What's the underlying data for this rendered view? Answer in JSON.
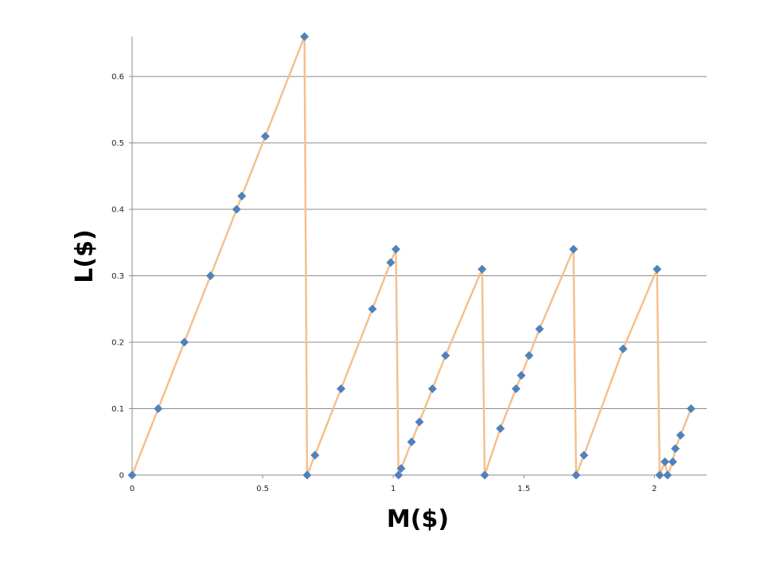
{
  "chart_data": {
    "type": "line",
    "title": "",
    "xlabel": "M($)",
    "ylabel": "L($)",
    "xlim": [
      0,
      2.2
    ],
    "ylim": [
      0,
      0.66
    ],
    "xticks": [
      0,
      0.5,
      1,
      1.5,
      2
    ],
    "xtick_labels": [
      "0",
      "0.5",
      "1",
      "1.5",
      "2"
    ],
    "yticks": [
      0,
      0.1,
      0.2,
      0.3,
      0.4,
      0.5,
      0.6
    ],
    "ytick_labels": [
      "0",
      "0.1",
      "0.2",
      "0.3",
      "0.4",
      "0.5",
      "0.6"
    ],
    "grid": "horizontal",
    "legend": "none",
    "line_color": "#F5C08D",
    "marker_color": "#4F81BD",
    "marker": "diamond",
    "series": [
      {
        "x": [
          0,
          0.1,
          0.2,
          0.3,
          0.4,
          0.42,
          0.51,
          0.66,
          0.67,
          0.7,
          0.8,
          0.92,
          0.99,
          1.01,
          1.02,
          1.03,
          1.07,
          1.1,
          1.15,
          1.2,
          1.34,
          1.35,
          1.41,
          1.47,
          1.49,
          1.52,
          1.56,
          1.69,
          1.7,
          1.73,
          1.88,
          2.01,
          2.02,
          2.04,
          2.05,
          2.07,
          2.08,
          2.1,
          2.14
        ],
        "y": [
          0,
          0.1,
          0.2,
          0.3,
          0.4,
          0.42,
          0.51,
          0.66,
          0,
          0.03,
          0.13,
          0.25,
          0.32,
          0.34,
          0,
          0.01,
          0.05,
          0.08,
          0.13,
          0.18,
          0.31,
          0,
          0.07,
          0.13,
          0.15,
          0.18,
          0.22,
          0.34,
          0,
          0.03,
          0.19,
          0.31,
          0,
          0.02,
          0,
          0.02,
          0.04,
          0.06,
          0.1
        ]
      }
    ]
  }
}
